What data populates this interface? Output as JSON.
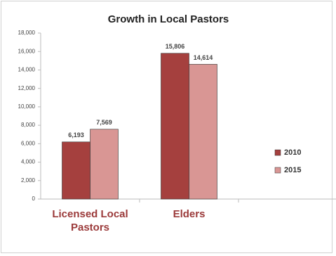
{
  "chart_data": {
    "type": "bar",
    "title": "Growth in Local Pastors",
    "categories": [
      "Licensed Local Pastors",
      "Elders"
    ],
    "series": [
      {
        "name": "2010",
        "color": "#a5403e",
        "values": [
          6193,
          15806
        ],
        "value_labels": [
          "6,193",
          "15,806"
        ]
      },
      {
        "name": "2015",
        "color": "#d99694",
        "values": [
          7569,
          14614
        ],
        "value_labels": [
          "7,569",
          "14,614"
        ]
      }
    ],
    "ylim": [
      0,
      18000
    ],
    "yticks": [
      0,
      {
        "value": 2000,
        "label": "2,000"
      },
      {
        "value": 4000,
        "label": "4,000"
      },
      {
        "value": 6000,
        "label": "6,000"
      },
      {
        "value": 8000,
        "label": "8,000"
      },
      {
        "value": 10000,
        "label": "10,000"
      },
      {
        "value": 12000,
        "label": "12,000"
      },
      {
        "value": 14000,
        "label": "14,000"
      },
      {
        "value": 16000,
        "label": "16,000"
      },
      {
        "value": 18000,
        "label": "18,000"
      }
    ],
    "grid": false,
    "legend": "right"
  }
}
